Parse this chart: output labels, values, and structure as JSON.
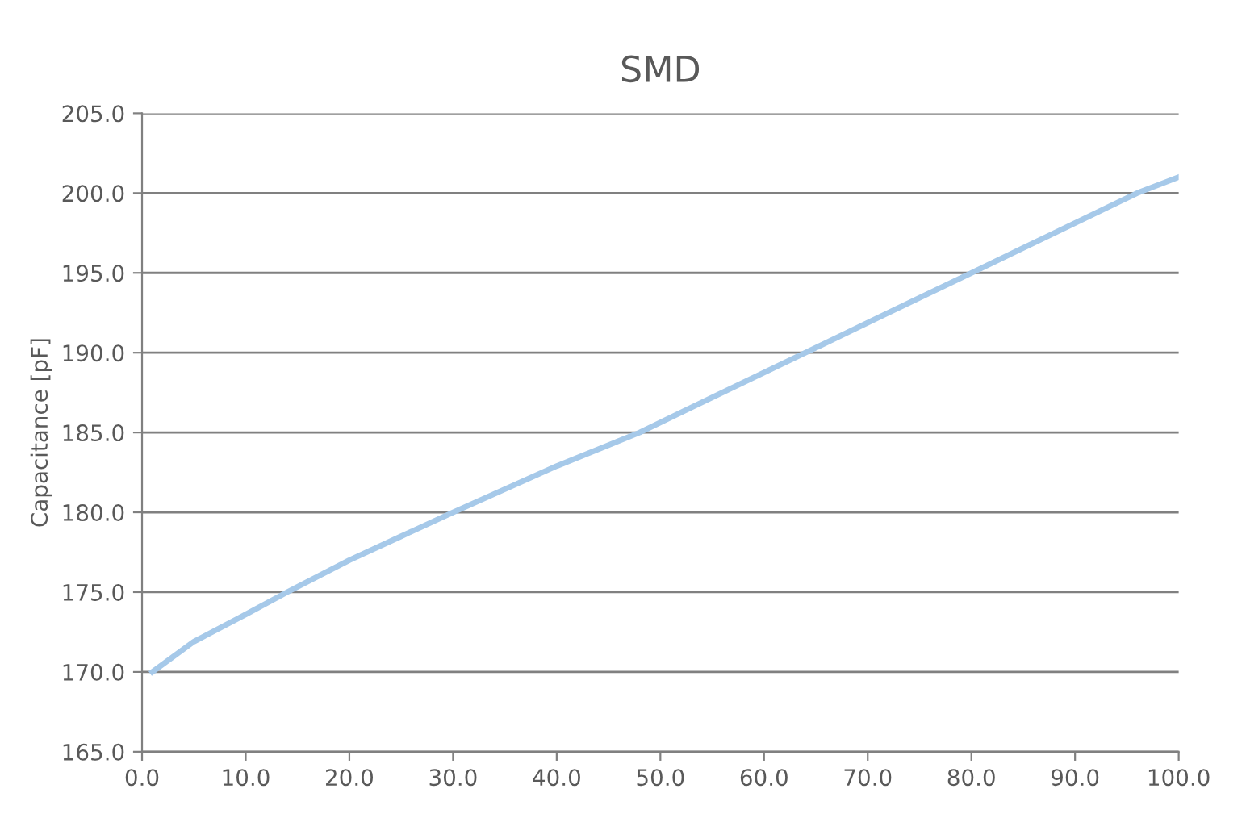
{
  "chart_data": {
    "type": "line",
    "title": "SMD",
    "ylabel": "Capacitance [pF]",
    "x": [
      1,
      5,
      10,
      14,
      20,
      25,
      30,
      40,
      48,
      55,
      64,
      72,
      80,
      88,
      96,
      100
    ],
    "series": [
      {
        "color": "#a6c9e9",
        "values": [
          170.0,
          171.9,
          173.6,
          175.0,
          177.0,
          178.5,
          180.0,
          182.9,
          185.0,
          187.2,
          190.0,
          192.5,
          195.0,
          197.5,
          200.0,
          201.0
        ]
      }
    ],
    "xlim": [
      0,
      100
    ],
    "xticks": [
      {
        "value": 0,
        "label": "0.0"
      },
      {
        "value": 10,
        "label": "10.0"
      },
      {
        "value": 20,
        "label": "20.0"
      },
      {
        "value": 30,
        "label": "30.0"
      },
      {
        "value": 40,
        "label": "40.0"
      },
      {
        "value": 50,
        "label": "50.0"
      },
      {
        "value": 60,
        "label": "60.0"
      },
      {
        "value": 70,
        "label": "70.0"
      },
      {
        "value": 80,
        "label": "80.0"
      },
      {
        "value": 90,
        "label": "90.0"
      },
      {
        "value": 100,
        "label": "100.0"
      }
    ],
    "ylim": [
      165,
      205
    ],
    "yticks": [
      {
        "value": 165,
        "label": "165.0"
      },
      {
        "value": 170,
        "label": "170.0"
      },
      {
        "value": 175,
        "label": "175.0"
      },
      {
        "value": 180,
        "label": "180.0"
      },
      {
        "value": 185,
        "label": "185.0"
      },
      {
        "value": 190,
        "label": "190.0"
      },
      {
        "value": 195,
        "label": "195.0"
      },
      {
        "value": 200,
        "label": "200.0"
      },
      {
        "value": 205,
        "label": "205.0"
      }
    ],
    "grid": "y",
    "marker": "none",
    "line_style": "solid"
  }
}
